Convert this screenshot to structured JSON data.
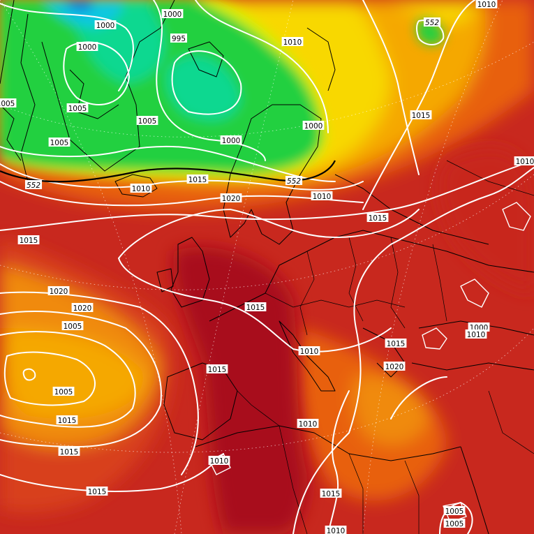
{
  "map": {
    "isobar_labels": [
      {
        "key": "a1",
        "text": "1000"
      },
      {
        "key": "a2",
        "text": "1000"
      },
      {
        "key": "a3",
        "text": "1000"
      },
      {
        "key": "a4",
        "text": "995"
      },
      {
        "key": "a5",
        "text": "1005"
      },
      {
        "key": "a6",
        "text": "1005"
      },
      {
        "key": "a7",
        "text": "1005"
      },
      {
        "key": "a8",
        "text": "1000"
      },
      {
        "key": "a9",
        "text": "1000"
      },
      {
        "key": "a10",
        "text": "1010"
      },
      {
        "key": "a11",
        "text": "1015"
      },
      {
        "key": "a12",
        "text": "1005"
      },
      {
        "key": "a13",
        "text": "1010"
      },
      {
        "key": "a14",
        "text": "1015"
      },
      {
        "key": "a15",
        "text": "1010"
      },
      {
        "key": "a16",
        "text": "1020"
      },
      {
        "key": "a17",
        "text": "1010"
      },
      {
        "key": "a18",
        "text": "1015"
      },
      {
        "key": "a19",
        "text": "1015"
      },
      {
        "key": "a20",
        "text": "1020"
      },
      {
        "key": "a21",
        "text": "1015"
      },
      {
        "key": "a22",
        "text": "1020"
      },
      {
        "key": "a23",
        "text": "1010"
      },
      {
        "key": "a24",
        "text": "1005"
      },
      {
        "key": "a25",
        "text": "1000"
      },
      {
        "key": "a26",
        "text": "1005"
      },
      {
        "key": "a27",
        "text": "1015"
      },
      {
        "key": "a28",
        "text": "1010"
      },
      {
        "key": "a29",
        "text": "1015"
      },
      {
        "key": "a30",
        "text": "1020"
      },
      {
        "key": "a31",
        "text": "1015"
      },
      {
        "key": "a32",
        "text": "1010"
      },
      {
        "key": "a33",
        "text": "1010"
      },
      {
        "key": "a34",
        "text": "1015"
      },
      {
        "key": "a35",
        "text": "1015"
      },
      {
        "key": "a36",
        "text": "1015"
      },
      {
        "key": "a37",
        "text": "1010"
      },
      {
        "key": "a38",
        "text": "1005"
      },
      {
        "key": "a39",
        "text": "1010"
      },
      {
        "key": "a40",
        "text": "1005"
      }
    ],
    "thickness_labels": [
      {
        "key": "t1",
        "text": "552"
      },
      {
        "key": "t2",
        "text": "552"
      },
      {
        "key": "t3",
        "text": "552"
      }
    ],
    "colors": {
      "deep_red": "#a8101c",
      "red": "#c8281e",
      "red_orange": "#d8401a",
      "orange": "#e86010",
      "orange_light": "#f08a0a",
      "amber": "#f5a800",
      "yellow": "#f8d800",
      "yellow_green": "#d6f000",
      "green": "#20d040",
      "green_teal": "#10d890",
      "cyan": "#10c8e0",
      "blue": "#1070e0"
    }
  }
}
